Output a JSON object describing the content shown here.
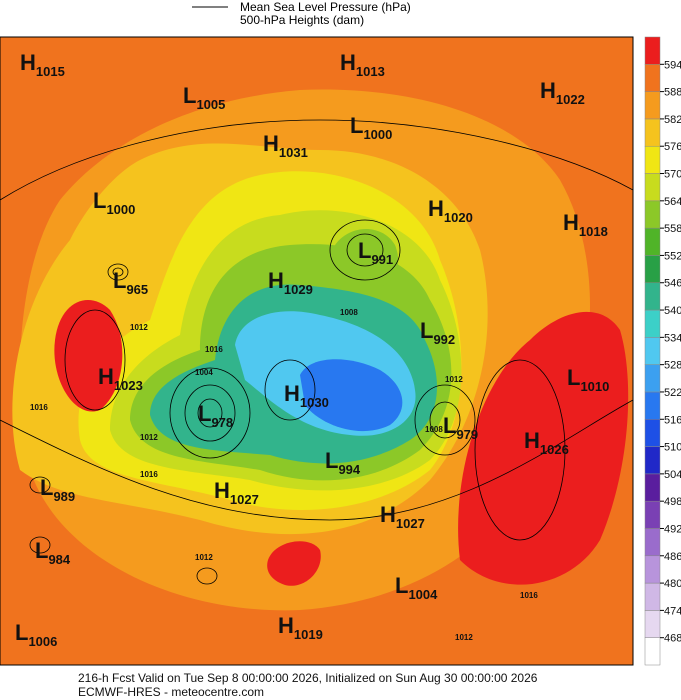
{
  "header": {
    "lines": [
      "Mean Sea Level Pressure (hPa)",
      "500-hPa Heights (dam)"
    ]
  },
  "colorbar": {
    "levels": [
      468,
      474,
      480,
      486,
      492,
      498,
      504,
      510,
      516,
      522,
      528,
      534,
      540,
      546,
      552,
      558,
      564,
      570,
      576,
      582,
      588,
      594
    ],
    "colors": [
      "#ffffff",
      "#e6d8f0",
      "#d0b8e6",
      "#b894dc",
      "#9a6ccc",
      "#7a40b4",
      "#5a1e9e",
      "#2028c8",
      "#1e50e6",
      "#2878f0",
      "#3ca0f0",
      "#50c8f0",
      "#3cd0c8",
      "#32b48c",
      "#28a046",
      "#50b428",
      "#8cc828",
      "#c8dc1e",
      "#f0e614",
      "#f5c31e",
      "#f59b1e",
      "#f0731e",
      "#eb1e1e"
    ]
  },
  "centers": [
    {
      "letter": "H",
      "value": 1015
    },
    {
      "letter": "L",
      "value": 1005
    },
    {
      "letter": "H",
      "value": 1013
    },
    {
      "letter": "H",
      "value": 1022
    },
    {
      "letter": "L",
      "value": 1000
    },
    {
      "letter": "H",
      "value": 1031
    },
    {
      "letter": "L",
      "value": 1000
    },
    {
      "letter": "H",
      "value": 1020
    },
    {
      "letter": "H",
      "value": 1018
    },
    {
      "letter": "L",
      "value": 991
    },
    {
      "letter": "H",
      "value": 1029
    },
    {
      "letter": "L",
      "value": 965
    },
    {
      "letter": "L",
      "value": 992
    },
    {
      "letter": "H",
      "value": 1023
    },
    {
      "letter": "L",
      "value": 1010
    },
    {
      "letter": "H",
      "value": 1030
    },
    {
      "letter": "L",
      "value": 978
    },
    {
      "letter": "L",
      "value": 979
    },
    {
      "letter": "H",
      "value": 1026
    },
    {
      "letter": "L",
      "value": 994
    },
    {
      "letter": "L",
      "value": 989
    },
    {
      "letter": "H",
      "value": 1027
    },
    {
      "letter": "H",
      "value": 1027
    },
    {
      "letter": "L",
      "value": 984
    },
    {
      "letter": "L",
      "value": 1004
    },
    {
      "letter": "H",
      "value": 1019
    },
    {
      "letter": "L",
      "value": 1006
    }
  ],
  "contour_labels": [
    1012,
    1016,
    1016,
    1012,
    1004,
    1008,
    1016,
    1008,
    1012,
    1012,
    1012,
    1016
  ],
  "footer": {
    "lines": [
      "216-h Fcst Valid on Tue Sep  8 00:00:00 2026, Initialized on Sun Aug 30 00:00:00 2026",
      "ECMWF-HRES  - meteocentre.com"
    ]
  }
}
